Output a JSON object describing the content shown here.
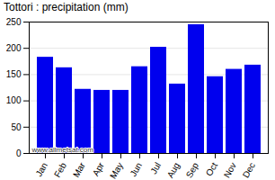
{
  "chart_data": {
    "type": "bar",
    "title": "Tottori : precipitation (mm)",
    "categories": [
      "Jan",
      "Feb",
      "Mar",
      "Apr",
      "May",
      "Jun",
      "Jul",
      "Aug",
      "Sep",
      "Oct",
      "Nov",
      "Dec"
    ],
    "values": [
      183,
      163,
      122,
      120,
      120,
      165,
      202,
      132,
      245,
      146,
      160,
      168
    ],
    "color": "#0000EE",
    "ylim": [
      0,
      250
    ],
    "yticks": [
      0,
      50,
      100,
      150,
      200,
      250
    ],
    "grid": true,
    "annotation": "www.allmetsat.com"
  }
}
